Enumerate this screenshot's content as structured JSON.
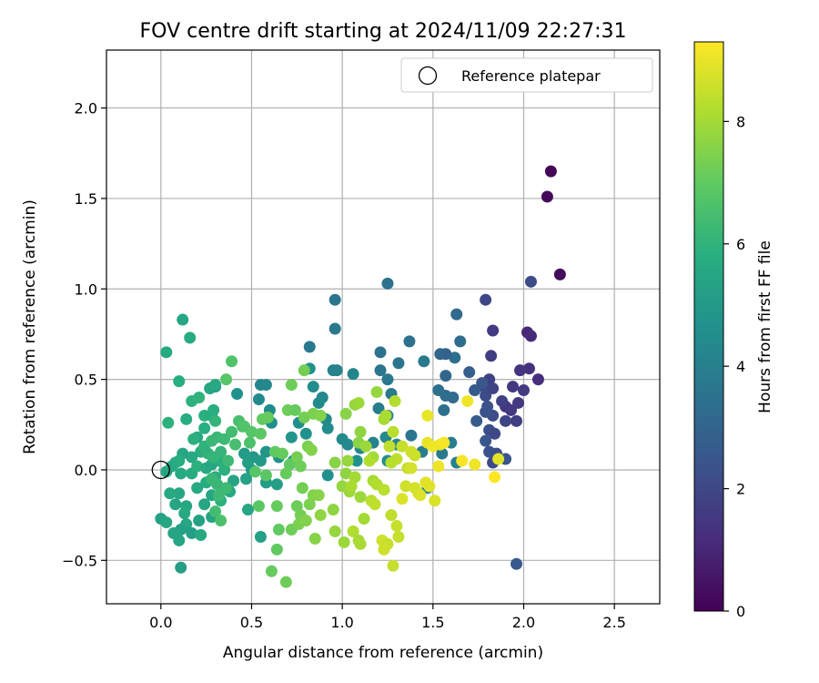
{
  "chart_data": {
    "type": "scatter",
    "title": "FOV centre drift starting at 2024/11/09 22:27:31",
    "xlabel": "Angular distance from reference (arcmin)",
    "ylabel": "Rotation from reference (arcmin)",
    "xlim": [
      -0.3,
      2.75
    ],
    "ylim": [
      -0.74,
      2.32
    ],
    "xticks": [
      0.0,
      0.5,
      1.0,
      1.5,
      2.0,
      2.5
    ],
    "xtick_labels": [
      "0.0",
      "0.5",
      "1.0",
      "1.5",
      "2.0",
      "2.5"
    ],
    "yticks": [
      -0.5,
      0.0,
      0.5,
      1.0,
      1.5,
      2.0
    ],
    "ytick_labels": [
      "−0.5",
      "0.0",
      "0.5",
      "1.0",
      "1.5",
      "2.0"
    ],
    "grid": true,
    "colorscale": "viridis",
    "colorbar": {
      "label": "Hours from first FF file",
      "range": [
        0,
        9.3
      ],
      "ticks": [
        0,
        2,
        4,
        6,
        8
      ],
      "tick_labels": [
        "0",
        "2",
        "4",
        "6",
        "8"
      ]
    },
    "legend": {
      "position": "top-right",
      "entries": [
        "Reference platepar"
      ]
    },
    "reference_point": {
      "x": 0.0,
      "y": 0.0
    },
    "points": [
      [
        2.15,
        1.65,
        0.1
      ],
      [
        2.13,
        1.51,
        0.2
      ],
      [
        2.2,
        1.08,
        0.3
      ],
      [
        2.04,
        1.04,
        2.1
      ],
      [
        2.02,
        0.76,
        1.0
      ],
      [
        2.04,
        0.74,
        1.1
      ],
      [
        2.03,
        0.56,
        1.3
      ],
      [
        2.08,
        0.5,
        1.2
      ],
      [
        1.98,
        0.55,
        1.4
      ],
      [
        1.94,
        0.46,
        1.5
      ],
      [
        2.0,
        0.44,
        1.6
      ],
      [
        1.97,
        0.37,
        1.5
      ],
      [
        1.96,
        0.27,
        1.7
      ],
      [
        1.9,
        0.35,
        1.4
      ],
      [
        1.93,
        0.33,
        1.6
      ],
      [
        1.88,
        0.38,
        1.8
      ],
      [
        1.9,
        0.27,
        1.9
      ],
      [
        1.83,
        0.77,
        1.6
      ],
      [
        1.82,
        0.63,
        1.7
      ],
      [
        1.79,
        0.94,
        2.0
      ],
      [
        1.81,
        0.5,
        1.8
      ],
      [
        1.79,
        0.45,
        2.0
      ],
      [
        1.83,
        0.45,
        1.9
      ],
      [
        1.79,
        0.41,
        2.1
      ],
      [
        1.8,
        0.35,
        2.3
      ],
      [
        1.83,
        0.3,
        2.1
      ],
      [
        1.79,
        0.32,
        2.4
      ],
      [
        1.81,
        0.22,
        2.2
      ],
      [
        1.84,
        0.2,
        2.0
      ],
      [
        1.79,
        0.16,
        2.5
      ],
      [
        1.81,
        0.1,
        2.3
      ],
      [
        1.83,
        0.04,
        2.0
      ],
      [
        1.85,
        0.09,
        2.2
      ],
      [
        1.9,
        0.06,
        2.4
      ],
      [
        1.96,
        -0.52,
        2.6
      ],
      [
        1.73,
        0.44,
        2.6
      ],
      [
        1.74,
        0.27,
        2.7
      ],
      [
        1.7,
        0.54,
        2.8
      ],
      [
        1.77,
        0.48,
        2.5
      ],
      [
        1.63,
        0.86,
        3.2
      ],
      [
        1.65,
        0.71,
        3.3
      ],
      [
        1.62,
        0.62,
        3.4
      ],
      [
        1.57,
        0.64,
        2.9
      ],
      [
        1.54,
        0.64,
        3.0
      ],
      [
        1.25,
        1.03,
        3.5
      ],
      [
        0.96,
        0.94,
        3.6
      ],
      [
        0.96,
        0.78,
        3.7
      ],
      [
        0.82,
        0.68,
        3.7
      ],
      [
        1.37,
        0.71,
        3.5
      ],
      [
        1.31,
        0.59,
        3.6
      ],
      [
        1.45,
        0.6,
        3.8
      ],
      [
        1.21,
        0.65,
        3.5
      ],
      [
        1.21,
        0.55,
        3.6
      ],
      [
        1.25,
        0.5,
        3.7
      ],
      [
        1.27,
        0.42,
        3.8
      ],
      [
        1.2,
        0.34,
        3.9
      ],
      [
        1.25,
        0.3,
        4.0
      ],
      [
        1.57,
        0.52,
        3.1
      ],
      [
        1.61,
        0.4,
        3.2
      ],
      [
        1.57,
        0.41,
        3.3
      ],
      [
        1.53,
        0.44,
        3.4
      ],
      [
        1.56,
        0.33,
        3.4
      ],
      [
        1.38,
        0.19,
        3.6
      ],
      [
        1.6,
        0.15,
        3.9
      ],
      [
        1.63,
        0.04,
        4.0
      ],
      [
        1.55,
        0.09,
        3.8
      ],
      [
        1.44,
        0.1,
        3.9
      ],
      [
        1.47,
        -0.1,
        4.1
      ],
      [
        1.3,
        0.14,
        4.2
      ],
      [
        1.24,
        0.18,
        4.3
      ],
      [
        1.17,
        0.15,
        4.1
      ],
      [
        1.1,
        0.12,
        4.2
      ],
      [
        1.0,
        0.17,
        4.4
      ],
      [
        1.03,
        0.14,
        4.3
      ],
      [
        0.97,
        0.55,
        4.0
      ],
      [
        0.95,
        0.55,
        4.1
      ],
      [
        1.06,
        0.53,
        4.2
      ],
      [
        0.89,
        0.4,
        4.3
      ],
      [
        0.87,
        0.37,
        4.4
      ],
      [
        0.84,
        0.46,
        4.5
      ],
      [
        0.82,
        0.56,
        4.6
      ],
      [
        0.91,
        0.28,
        4.4
      ],
      [
        0.92,
        0.23,
        4.5
      ],
      [
        0.76,
        0.26,
        4.6
      ],
      [
        0.8,
        0.2,
        4.7
      ],
      [
        0.72,
        0.18,
        4.8
      ],
      [
        0.73,
        0.05,
        4.9
      ],
      [
        0.65,
        0.07,
        4.7
      ],
      [
        0.58,
        0.1,
        4.8
      ],
      [
        0.51,
        0.07,
        4.9
      ],
      [
        0.55,
        0.05,
        5.0
      ],
      [
        0.46,
        0.09,
        5.1
      ],
      [
        0.48,
        0.04,
        5.2
      ],
      [
        0.55,
        0.47,
        4.2
      ],
      [
        0.58,
        0.47,
        4.3
      ],
      [
        0.54,
        0.39,
        4.4
      ],
      [
        0.6,
        0.33,
        4.5
      ],
      [
        0.61,
        0.26,
        4.6
      ],
      [
        0.42,
        0.42,
        4.7
      ],
      [
        0.3,
        0.46,
        4.8
      ],
      [
        0.5,
        -0.0,
        5.0
      ],
      [
        0.58,
        -0.07,
        5.1
      ],
      [
        0.64,
        -0.08,
        5.2
      ],
      [
        0.47,
        -0.05,
        5.3
      ],
      [
        0.4,
        -0.06,
        5.4
      ],
      [
        0.48,
        -0.22,
        5.5
      ],
      [
        0.55,
        -0.37,
        5.3
      ],
      [
        0.92,
        -0.03,
        4.6
      ],
      [
        1.08,
        0.05,
        4.7
      ],
      [
        1.25,
        0.05,
        4.5
      ],
      [
        0.12,
        0.83,
        5.5
      ],
      [
        0.03,
        0.65,
        5.6
      ],
      [
        0.16,
        0.73,
        5.7
      ],
      [
        0.1,
        0.49,
        5.8
      ],
      [
        0.04,
        0.26,
        5.9
      ],
      [
        0.14,
        0.28,
        5.8
      ],
      [
        0.17,
        0.38,
        5.9
      ],
      [
        0.21,
        0.4,
        6.0
      ],
      [
        0.24,
        0.3,
        5.9
      ],
      [
        0.28,
        0.3,
        5.7
      ],
      [
        0.29,
        0.33,
        5.8
      ],
      [
        0.27,
        0.45,
        5.5
      ],
      [
        0.3,
        0.47,
        5.6
      ],
      [
        0.24,
        0.23,
        5.8
      ],
      [
        0.2,
        0.18,
        5.7
      ],
      [
        0.18,
        0.17,
        5.9
      ],
      [
        0.22,
        0.1,
        5.8
      ],
      [
        0.17,
        0.07,
        5.6
      ],
      [
        0.12,
        0.09,
        5.5
      ],
      [
        0.1,
        0.05,
        5.7
      ],
      [
        0.08,
        0.04,
        5.8
      ],
      [
        0.06,
        0.02,
        5.6
      ],
      [
        0.03,
        -0.01,
        5.5
      ],
      [
        0.11,
        -0.02,
        5.6
      ],
      [
        0.17,
        -0.02,
        5.7
      ],
      [
        0.2,
        0.02,
        5.9
      ],
      [
        0.25,
        0.01,
        5.6
      ],
      [
        0.28,
        0.03,
        5.5
      ],
      [
        0.32,
        0.05,
        5.8
      ],
      [
        0.35,
        0.0,
        5.9
      ],
      [
        0.3,
        -0.04,
        5.8
      ],
      [
        0.25,
        -0.07,
        5.7
      ],
      [
        0.2,
        -0.1,
        5.6
      ],
      [
        0.28,
        -0.14,
        5.5
      ],
      [
        0.33,
        -0.17,
        5.9
      ],
      [
        0.38,
        -0.12,
        5.6
      ],
      [
        0.1,
        -0.13,
        5.5
      ],
      [
        0.05,
        -0.13,
        5.6
      ],
      [
        0.08,
        -0.19,
        5.4
      ],
      [
        0.14,
        -0.2,
        5.5
      ],
      [
        0.13,
        -0.24,
        5.6
      ],
      [
        0.24,
        -0.19,
        5.5
      ],
      [
        0.21,
        -0.28,
        5.3
      ],
      [
        0.28,
        -0.26,
        5.4
      ],
      [
        0.14,
        -0.3,
        5.5
      ],
      [
        0.11,
        -0.33,
        5.3
      ],
      [
        0.07,
        -0.35,
        5.4
      ],
      [
        0.1,
        -0.39,
        5.5
      ],
      [
        0.17,
        -0.35,
        5.2
      ],
      [
        0.22,
        -0.36,
        5.6
      ],
      [
        0.0,
        -0.27,
        5.3
      ],
      [
        0.03,
        -0.29,
        5.5
      ],
      [
        0.11,
        -0.54,
        5.2
      ],
      [
        0.24,
        0.13,
        6.0
      ],
      [
        0.3,
        0.27,
        6.1
      ],
      [
        0.31,
        0.18,
        6.2
      ],
      [
        0.33,
        0.1,
        6.1
      ],
      [
        0.28,
        0.16,
        6.2
      ],
      [
        0.26,
        0.09,
        6.0
      ],
      [
        0.29,
        0.07,
        6.1
      ],
      [
        0.28,
        -0.05,
        6.2
      ],
      [
        0.31,
        -0.08,
        6.2
      ],
      [
        0.32,
        -0.14,
        6.3
      ],
      [
        0.36,
        -0.1,
        6.3
      ],
      [
        0.35,
        0.17,
        6.3
      ],
      [
        0.39,
        0.21,
        6.4
      ],
      [
        0.41,
        0.14,
        6.5
      ],
      [
        0.37,
        0.05,
        6.3
      ],
      [
        0.43,
        0.27,
        6.5
      ],
      [
        0.45,
        0.24,
        6.6
      ],
      [
        0.39,
        0.6,
        6.7
      ],
      [
        0.36,
        0.5,
        6.8
      ],
      [
        0.3,
        -0.23,
        6.4
      ],
      [
        0.33,
        -0.28,
        6.6
      ],
      [
        0.46,
        0.24,
        6.7
      ],
      [
        0.49,
        0.15,
        6.6
      ],
      [
        0.5,
        0.21,
        6.8
      ],
      [
        0.55,
        0.2,
        6.9
      ],
      [
        0.56,
        0.28,
        7.0
      ],
      [
        0.59,
        0.29,
        7.1
      ],
      [
        0.52,
        -0.01,
        6.8
      ],
      [
        0.58,
        -0.03,
        6.9
      ],
      [
        0.63,
        0.1,
        7.0
      ],
      [
        0.67,
        0.09,
        7.1
      ],
      [
        0.54,
        -0.2,
        6.9
      ],
      [
        0.64,
        -0.2,
        7.1
      ],
      [
        0.65,
        -0.33,
        7.0
      ],
      [
        0.72,
        -0.33,
        7.2
      ],
      [
        0.61,
        -0.56,
        7.1
      ],
      [
        0.64,
        -0.44,
        7.0
      ],
      [
        0.69,
        -0.62,
        7.2
      ],
      [
        0.71,
        0.03,
        7.0
      ],
      [
        0.69,
        -0.02,
        7.1
      ],
      [
        0.75,
        0.07,
        7.3
      ],
      [
        0.77,
        0.02,
        7.2
      ],
      [
        0.78,
        -0.1,
        7.3
      ],
      [
        0.81,
        0.13,
        7.4
      ],
      [
        0.83,
        0.11,
        7.5
      ],
      [
        0.79,
        0.29,
        7.3
      ],
      [
        0.84,
        0.31,
        7.4
      ],
      [
        0.88,
        0.3,
        7.5
      ],
      [
        0.79,
        0.55,
        7.3
      ],
      [
        0.72,
        0.47,
        7.2
      ],
      [
        0.7,
        0.33,
        7.2
      ],
      [
        0.74,
        0.33,
        7.1
      ],
      [
        0.75,
        -0.2,
        7.2
      ],
      [
        0.77,
        -0.25,
        7.3
      ],
      [
        0.82,
        -0.19,
        7.4
      ],
      [
        0.84,
        -0.14,
        7.5
      ],
      [
        0.87,
        -0.14,
        7.6
      ],
      [
        0.76,
        -0.3,
        7.4
      ],
      [
        0.8,
        -0.28,
        7.5
      ],
      [
        0.85,
        -0.38,
        7.6
      ],
      [
        0.88,
        -0.25,
        7.7
      ],
      [
        0.95,
        -0.22,
        7.7
      ],
      [
        0.96,
        -0.34,
        7.8
      ],
      [
        1.01,
        -0.4,
        7.9
      ],
      [
        0.96,
        0.04,
        7.6
      ],
      [
        1.02,
        -0.02,
        7.7
      ],
      [
        1.0,
        -0.09,
        7.8
      ],
      [
        1.04,
        -0.12,
        7.9
      ],
      [
        1.07,
        -0.04,
        8.0
      ],
      [
        1.05,
        -0.09,
        8.1
      ],
      [
        1.1,
        -0.15,
        7.9
      ],
      [
        1.12,
        -0.27,
        8.0
      ],
      [
        1.09,
        -0.39,
        8.0
      ],
      [
        1.1,
        -0.41,
        8.1
      ],
      [
        1.06,
        -0.34,
        8.2
      ],
      [
        1.09,
        0.15,
        7.6
      ],
      [
        1.1,
        0.21,
        7.7
      ],
      [
        1.07,
        0.36,
        7.8
      ],
      [
        1.09,
        0.37,
        7.9
      ],
      [
        1.02,
        0.31,
        7.6
      ],
      [
        1.03,
        0.05,
        7.8
      ],
      [
        1.13,
        0.13,
        7.9
      ],
      [
        1.17,
        0.07,
        8.0
      ],
      [
        1.15,
        0.05,
        8.2
      ],
      [
        1.17,
        -0.06,
        8.1
      ],
      [
        1.19,
        -0.08,
        8.2
      ],
      [
        1.16,
        -0.17,
        8.3
      ],
      [
        1.18,
        -0.19,
        8.4
      ],
      [
        1.23,
        -0.11,
        8.3
      ],
      [
        1.27,
        -0.25,
        8.4
      ],
      [
        1.3,
        -0.31,
        8.5
      ],
      [
        1.31,
        -0.37,
        8.5
      ],
      [
        1.22,
        -0.39,
        8.6
      ],
      [
        1.25,
        -0.41,
        8.5
      ],
      [
        1.23,
        -0.44,
        8.6
      ],
      [
        1.28,
        -0.53,
        8.5
      ],
      [
        1.19,
        0.43,
        7.8
      ],
      [
        1.23,
        0.28,
        8.0
      ],
      [
        1.24,
        0.3,
        8.1
      ],
      [
        1.29,
        0.38,
        8.2
      ],
      [
        1.28,
        0.21,
        8.3
      ],
      [
        1.26,
        0.13,
        8.4
      ],
      [
        1.33,
        0.13,
        8.5
      ],
      [
        1.3,
        0.06,
        8.4
      ],
      [
        1.27,
        0.04,
        8.3
      ],
      [
        1.36,
        0.01,
        8.5
      ],
      [
        1.38,
        0.1,
        8.6
      ],
      [
        1.4,
        0.08,
        8.6
      ],
      [
        1.38,
        0.01,
        8.7
      ],
      [
        1.35,
        -0.09,
        8.6
      ],
      [
        1.4,
        -0.1,
        8.7
      ],
      [
        1.42,
        -0.13,
        8.7
      ],
      [
        1.43,
        -0.14,
        8.8
      ],
      [
        1.46,
        -0.07,
        8.9
      ],
      [
        1.48,
        -0.09,
        8.9
      ],
      [
        1.51,
        -0.17,
        8.8
      ],
      [
        1.33,
        -0.16,
        8.8
      ],
      [
        1.47,
        0.3,
        9.0
      ],
      [
        1.47,
        0.15,
        9.0
      ],
      [
        1.5,
        0.13,
        9.1
      ],
      [
        1.54,
        0.14,
        9.1
      ],
      [
        1.56,
        0.15,
        9.2
      ],
      [
        1.53,
        0.02,
        9.1
      ],
      [
        1.66,
        0.05,
        9.2
      ],
      [
        1.69,
        0.38,
        9.1
      ],
      [
        1.73,
        0.03,
        9.1
      ],
      [
        1.86,
        0.06,
        8.9
      ],
      [
        1.84,
        -0.04,
        9.3
      ]
    ]
  }
}
